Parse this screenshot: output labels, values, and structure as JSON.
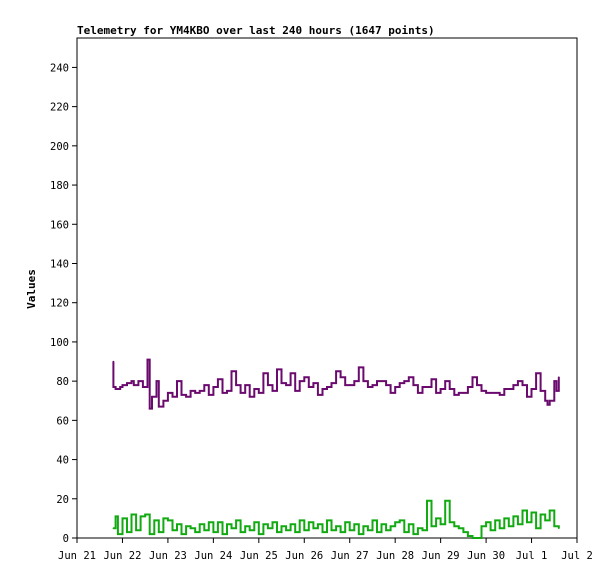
{
  "chart_data": {
    "type": "line",
    "title": "Telemetry for YM4KBO over last 240 hours (1647 points)",
    "xlabel": "",
    "ylabel": "Values",
    "ylim": [
      0,
      255
    ],
    "xlim": [
      0,
      11
    ],
    "yticks": [
      0,
      20,
      40,
      60,
      80,
      100,
      120,
      140,
      160,
      180,
      200,
      220,
      240
    ],
    "xticks": [
      {
        "pos": 0,
        "label": "Jun 21"
      },
      {
        "pos": 1,
        "label": "Jun 22"
      },
      {
        "pos": 2,
        "label": "Jun 23"
      },
      {
        "pos": 3,
        "label": "Jun 24"
      },
      {
        "pos": 4,
        "label": "Jun 25"
      },
      {
        "pos": 5,
        "label": "Jun 26"
      },
      {
        "pos": 6,
        "label": "Jun 27"
      },
      {
        "pos": 7,
        "label": "Jun 28"
      },
      {
        "pos": 8,
        "label": "Jun 29"
      },
      {
        "pos": 9,
        "label": "Jun 30"
      },
      {
        "pos": 10,
        "label": "Jul 1"
      },
      {
        "pos": 11,
        "label": "Jul 2"
      }
    ],
    "grid": false,
    "series": [
      {
        "color": "#6a0a6e",
        "x": [
          0.8,
          0.8,
          0.85,
          0.95,
          1.0,
          1.1,
          1.2,
          1.25,
          1.35,
          1.45,
          1.55,
          1.6,
          1.65,
          1.75,
          1.8,
          1.9,
          2.0,
          2.1,
          2.2,
          2.3,
          2.4,
          2.5,
          2.6,
          2.7,
          2.8,
          2.9,
          3.0,
          3.1,
          3.2,
          3.3,
          3.4,
          3.5,
          3.6,
          3.7,
          3.8,
          3.9,
          4.0,
          4.1,
          4.2,
          4.3,
          4.4,
          4.5,
          4.6,
          4.7,
          4.8,
          4.9,
          5.0,
          5.1,
          5.2,
          5.3,
          5.4,
          5.5,
          5.6,
          5.7,
          5.8,
          5.9,
          6.0,
          6.1,
          6.2,
          6.3,
          6.4,
          6.5,
          6.6,
          6.7,
          6.8,
          6.9,
          7.0,
          7.1,
          7.2,
          7.3,
          7.4,
          7.5,
          7.6,
          7.7,
          7.8,
          7.9,
          8.0,
          8.1,
          8.2,
          8.3,
          8.4,
          8.5,
          8.6,
          8.7,
          8.8,
          8.9,
          9.0,
          9.1,
          9.2,
          9.3,
          9.4,
          9.5,
          9.6,
          9.7,
          9.8,
          9.9,
          10.0,
          10.1,
          10.2,
          10.3,
          10.35,
          10.4,
          10.5,
          10.55,
          10.6
        ],
        "y": [
          90,
          77,
          76,
          77,
          78,
          79,
          80,
          78,
          80,
          77,
          91,
          66,
          72,
          80,
          67,
          70,
          74,
          72,
          80,
          73,
          72,
          75,
          74,
          75,
          78,
          73,
          77,
          81,
          74,
          75,
          85,
          78,
          74,
          78,
          72,
          76,
          74,
          84,
          78,
          75,
          86,
          79,
          78,
          84,
          75,
          80,
          82,
          77,
          79,
          73,
          76,
          77,
          79,
          85,
          82,
          78,
          78,
          80,
          87,
          80,
          77,
          78,
          80,
          80,
          78,
          74,
          77,
          79,
          80,
          82,
          78,
          74,
          77,
          77,
          81,
          74,
          76,
          80,
          76,
          73,
          74,
          74,
          77,
          82,
          78,
          75,
          74,
          74,
          74,
          73,
          76,
          76,
          78,
          80,
          78,
          72,
          76,
          84,
          75,
          70,
          68,
          70,
          80,
          75,
          82
        ]
      },
      {
        "color": "#11aa11",
        "x": [
          0.8,
          0.85,
          0.9,
          1.0,
          1.1,
          1.2,
          1.3,
          1.4,
          1.5,
          1.6,
          1.7,
          1.8,
          1.9,
          2.0,
          2.1,
          2.2,
          2.3,
          2.4,
          2.5,
          2.6,
          2.7,
          2.8,
          2.9,
          3.0,
          3.1,
          3.2,
          3.3,
          3.4,
          3.5,
          3.6,
          3.7,
          3.8,
          3.9,
          4.0,
          4.1,
          4.2,
          4.3,
          4.4,
          4.5,
          4.6,
          4.7,
          4.8,
          4.9,
          5.0,
          5.1,
          5.2,
          5.3,
          5.4,
          5.5,
          5.6,
          5.7,
          5.8,
          5.9,
          6.0,
          6.1,
          6.2,
          6.3,
          6.4,
          6.5,
          6.6,
          6.7,
          6.8,
          6.9,
          7.0,
          7.1,
          7.2,
          7.3,
          7.4,
          7.5,
          7.6,
          7.7,
          7.8,
          7.9,
          8.0,
          8.1,
          8.2,
          8.3,
          8.4,
          8.5,
          8.6,
          8.7,
          8.8,
          8.9,
          9.0,
          9.1,
          9.2,
          9.3,
          9.4,
          9.5,
          9.6,
          9.7,
          9.8,
          9.9,
          10.0,
          10.1,
          10.2,
          10.3,
          10.4,
          10.5,
          10.6
        ],
        "y": [
          5,
          11,
          2,
          10,
          3,
          12,
          4,
          11,
          12,
          2,
          9,
          3,
          10,
          9,
          4,
          7,
          2,
          6,
          5,
          3,
          7,
          4,
          8,
          3,
          8,
          2,
          7,
          5,
          9,
          3,
          6,
          4,
          8,
          2,
          7,
          5,
          8,
          3,
          6,
          4,
          7,
          3,
          9,
          4,
          8,
          5,
          7,
          3,
          9,
          4,
          6,
          3,
          8,
          4,
          7,
          2,
          6,
          4,
          9,
          3,
          7,
          4,
          6,
          8,
          9,
          3,
          7,
          2,
          5,
          4,
          19,
          6,
          10,
          7,
          19,
          8,
          6,
          5,
          3,
          1,
          0,
          0,
          6,
          8,
          4,
          9,
          5,
          10,
          6,
          11,
          7,
          14,
          8,
          13,
          5,
          12,
          9,
          14,
          6,
          5
        ]
      }
    ]
  }
}
